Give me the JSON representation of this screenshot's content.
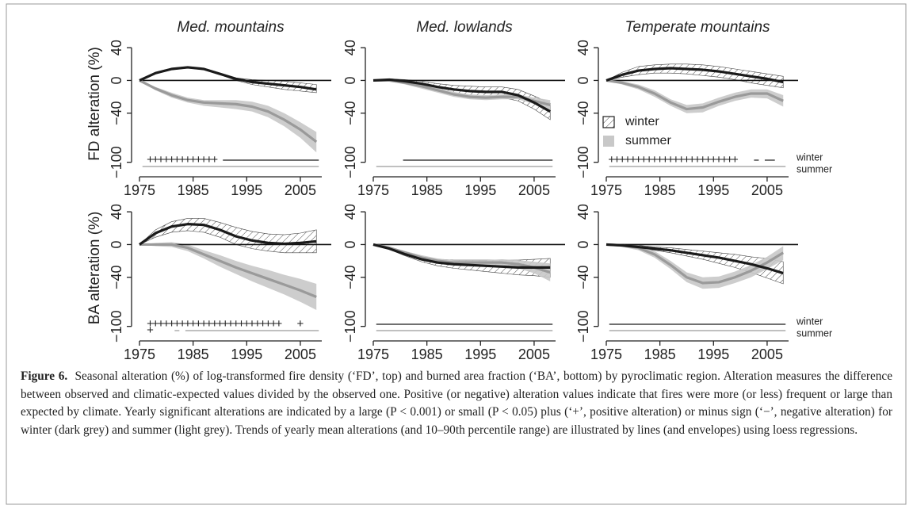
{
  "chart_data": [
    {
      "type": "line",
      "title": "Med. mountains",
      "ylabel": "FD alteration (%)",
      "x": [
        1975,
        1978,
        1981,
        1984,
        1987,
        1990,
        1993,
        1996,
        1999,
        2002,
        2005,
        2008
      ],
      "xlim": [
        1975,
        2009
      ],
      "xticks": [
        1975,
        1985,
        1995,
        2005
      ],
      "ylim": [
        -110,
        45
      ],
      "yticks": [
        40,
        0,
        {
          "value": -40,
          "label": "−40"
        },
        {
          "value": -100,
          "label": "−100"
        }
      ],
      "hline": 0,
      "series": [
        {
          "name": "winter",
          "color": "#1a1a1a",
          "envelope": "hatch",
          "values": [
            0,
            9,
            14,
            16,
            14,
            8,
            2,
            -2,
            -4,
            -6,
            -8,
            -11
          ],
          "lower": [
            0,
            8,
            13,
            15,
            13,
            7,
            0,
            -5,
            -8,
            -11,
            -13,
            -15
          ],
          "upper": [
            0,
            10,
            15,
            17,
            15,
            9,
            3,
            1,
            0,
            -1,
            -3,
            -5
          ]
        },
        {
          "name": "summer",
          "color": "#9a9a9a",
          "envelope": "#c8c8c8",
          "values": [
            0,
            -10,
            -18,
            -24,
            -27,
            -28,
            -29,
            -32,
            -38,
            -48,
            -60,
            -75
          ],
          "lower": [
            0,
            -12,
            -21,
            -27,
            -31,
            -33,
            -35,
            -38,
            -45,
            -56,
            -70,
            -88
          ],
          "upper": [
            0,
            -8,
            -15,
            -21,
            -24,
            -24,
            -24,
            -26,
            -31,
            -40,
            -51,
            -63
          ]
        }
      ],
      "significance": [
        [
          {
            "sign": "+",
            "from": 1977,
            "to": 1989
          },
          {
            "sign": "−",
            "from": 1991,
            "to": 2008
          }
        ],
        [
          {
            "sign": "−",
            "from": 1976,
            "to": 2008
          }
        ]
      ]
    },
    {
      "type": "line",
      "title": "Med. lowlands",
      "x": [
        1975,
        1978,
        1981,
        1984,
        1987,
        1990,
        1993,
        1996,
        1999,
        2002,
        2005,
        2008
      ],
      "xlim": [
        1975,
        2009
      ],
      "xticks": [
        1975,
        1985,
        1995,
        2005
      ],
      "ylim": [
        -110,
        45
      ],
      "yticks": [
        40,
        0,
        {
          "value": -40,
          "label": "−40"
        },
        {
          "value": -100,
          "label": "−100"
        }
      ],
      "hline": 0,
      "series": [
        {
          "name": "winter",
          "color": "#1a1a1a",
          "envelope": "hatch",
          "values": [
            0,
            1,
            -1,
            -4,
            -8,
            -11,
            -13,
            -14,
            -14,
            -18,
            -27,
            -38
          ],
          "lower": [
            0,
            0,
            -3,
            -7,
            -12,
            -16,
            -19,
            -20,
            -21,
            -25,
            -35,
            -48
          ],
          "upper": [
            0,
            2,
            1,
            -1,
            -4,
            -6,
            -7,
            -8,
            -8,
            -11,
            -19,
            -28
          ]
        },
        {
          "name": "summer",
          "color": "#9a9a9a",
          "envelope": "#c8c8c8",
          "values": [
            0,
            0,
            -3,
            -7,
            -12,
            -17,
            -20,
            -21,
            -20,
            -20,
            -25,
            -30
          ],
          "lower": [
            0,
            -1,
            -5,
            -10,
            -15,
            -20,
            -23,
            -24,
            -23,
            -23,
            -29,
            -36
          ],
          "upper": [
            0,
            1,
            -1,
            -4,
            -9,
            -14,
            -17,
            -18,
            -17,
            -17,
            -21,
            -24
          ]
        }
      ],
      "significance": [
        [
          {
            "sign": "−",
            "from": 1981,
            "to": 2008
          }
        ],
        [
          {
            "sign": "−",
            "from": 1976,
            "to": 2008
          }
        ]
      ]
    },
    {
      "type": "line",
      "title": "Temperate mountains",
      "legend": "center-left",
      "row_labels": [
        "winter",
        "summer"
      ],
      "x": [
        1975,
        1978,
        1981,
        1984,
        1987,
        1990,
        1993,
        1996,
        1999,
        2002,
        2005,
        2008
      ],
      "xlim": [
        1975,
        2009
      ],
      "xticks": [
        1975,
        1985,
        1995,
        2005
      ],
      "ylim": [
        -110,
        45
      ],
      "yticks": [
        40,
        0,
        {
          "value": -40,
          "label": "−40"
        },
        {
          "value": -100,
          "label": "−100"
        }
      ],
      "hline": 0,
      "series": [
        {
          "name": "winter",
          "color": "#1a1a1a",
          "envelope": "hatch",
          "values": [
            0,
            7,
            12,
            14,
            15,
            14,
            13,
            11,
            8,
            5,
            2,
            -2
          ],
          "lower": [
            0,
            4,
            7,
            9,
            9,
            8,
            6,
            4,
            1,
            -3,
            -6,
            -9
          ],
          "upper": [
            0,
            10,
            17,
            19,
            20,
            20,
            19,
            17,
            14,
            11,
            8,
            5
          ]
        },
        {
          "name": "summer",
          "color": "#9a9a9a",
          "envelope": "#c8c8c8",
          "values": [
            0,
            -3,
            -8,
            -16,
            -27,
            -35,
            -33,
            -26,
            -20,
            -16,
            -16,
            -25
          ],
          "lower": [
            0,
            -5,
            -11,
            -20,
            -31,
            -40,
            -39,
            -31,
            -25,
            -21,
            -22,
            -32
          ],
          "upper": [
            0,
            -1,
            -5,
            -12,
            -23,
            -30,
            -28,
            -21,
            -15,
            -11,
            -11,
            -18
          ]
        }
      ],
      "significance": [
        [
          {
            "sign": "+",
            "from": 1976,
            "to": 1999
          },
          {
            "sign": "−",
            "from": 2003,
            "to": 2003
          },
          {
            "sign": "−",
            "from": 2005,
            "to": 2006
          }
        ],
        [
          {
            "sign": "−",
            "from": 1976,
            "to": 2008
          }
        ]
      ]
    },
    {
      "type": "line",
      "ylabel": "BA alteration (%)",
      "x": [
        1975,
        1978,
        1981,
        1984,
        1987,
        1990,
        1993,
        1996,
        1999,
        2002,
        2005,
        2008
      ],
      "xlim": [
        1975,
        2009
      ],
      "xticks": [
        1975,
        1985,
        1995,
        2005
      ],
      "ylim": [
        -110,
        45
      ],
      "yticks": [
        40,
        0,
        {
          "value": -40,
          "label": "−40"
        },
        {
          "value": -100,
          "label": "−100"
        }
      ],
      "hline": 0,
      "series": [
        {
          "name": "winter",
          "color": "#1a1a1a",
          "envelope": "hatch",
          "values": [
            0,
            14,
            22,
            25,
            24,
            18,
            10,
            5,
            2,
            1,
            2,
            4
          ],
          "lower": [
            0,
            9,
            15,
            17,
            15,
            9,
            0,
            -5,
            -8,
            -10,
            -10,
            -10
          ],
          "upper": [
            0,
            18,
            28,
            32,
            32,
            27,
            21,
            16,
            13,
            12,
            14,
            18
          ]
        },
        {
          "name": "summer",
          "color": "#9a9a9a",
          "envelope": "#c8c8c8",
          "values": [
            0,
            0,
            0,
            -4,
            -12,
            -20,
            -28,
            -35,
            -42,
            -49,
            -56,
            -64
          ],
          "lower": [
            0,
            -2,
            -3,
            -8,
            -17,
            -27,
            -36,
            -45,
            -53,
            -61,
            -70,
            -80
          ],
          "upper": [
            0,
            2,
            3,
            0,
            -7,
            -13,
            -20,
            -26,
            -31,
            -37,
            -42,
            -48
          ]
        }
      ],
      "significance": [
        [
          {
            "sign": "+",
            "from": 1977,
            "to": 2001
          },
          {
            "sign": "+",
            "from": 2005,
            "to": 2005
          }
        ],
        [
          {
            "sign": "+",
            "from": 1977,
            "to": 1977
          },
          {
            "sign": "−",
            "from": 1982,
            "to": 1982
          },
          {
            "sign": "−",
            "from": 1984,
            "to": 2008
          }
        ]
      ]
    },
    {
      "type": "line",
      "x": [
        1975,
        1978,
        1981,
        1984,
        1987,
        1990,
        1993,
        1996,
        1999,
        2002,
        2005,
        2008
      ],
      "xlim": [
        1975,
        2009
      ],
      "xticks": [
        1975,
        1985,
        1995,
        2005
      ],
      "ylim": [
        -110,
        45
      ],
      "yticks": [
        40,
        0,
        {
          "value": -40,
          "label": "−40"
        },
        {
          "value": -100,
          "label": "−100"
        }
      ],
      "hline": 0,
      "series": [
        {
          "name": "winter",
          "color": "#1a1a1a",
          "envelope": "hatch",
          "values": [
            0,
            -5,
            -12,
            -18,
            -22,
            -24,
            -25,
            -26,
            -27,
            -28,
            -28,
            -28
          ],
          "lower": [
            0,
            -6,
            -14,
            -21,
            -26,
            -29,
            -31,
            -33,
            -35,
            -37,
            -38,
            -40
          ],
          "upper": [
            0,
            -4,
            -10,
            -15,
            -18,
            -19,
            -19,
            -19,
            -19,
            -19,
            -18,
            -17
          ]
        },
        {
          "name": "summer",
          "color": "#9a9a9a",
          "envelope": "#c8c8c8",
          "values": [
            0,
            -4,
            -10,
            -16,
            -20,
            -22,
            -22,
            -22,
            -22,
            -24,
            -28,
            -34
          ],
          "lower": [
            0,
            -5,
            -12,
            -18,
            -22,
            -25,
            -25,
            -25,
            -26,
            -29,
            -35,
            -45
          ],
          "upper": [
            0,
            -3,
            -8,
            -13,
            -17,
            -19,
            -19,
            -19,
            -18,
            -19,
            -21,
            -23
          ]
        }
      ],
      "significance": [
        [
          {
            "sign": "−",
            "from": 1976,
            "to": 2008
          }
        ],
        [
          {
            "sign": "−",
            "from": 1976,
            "to": 2008
          }
        ]
      ]
    },
    {
      "type": "line",
      "row_labels": [
        "winter",
        "summer"
      ],
      "x": [
        1975,
        1978,
        1981,
        1984,
        1987,
        1990,
        1993,
        1996,
        1999,
        2002,
        2005,
        2008
      ],
      "xlim": [
        1975,
        2009
      ],
      "xticks": [
        1975,
        1985,
        1995,
        2005
      ],
      "ylim": [
        -110,
        45
      ],
      "yticks": [
        40,
        0,
        {
          "value": -40,
          "label": "−40"
        },
        {
          "value": -100,
          "label": "−100"
        }
      ],
      "hline": 0,
      "series": [
        {
          "name": "winter",
          "color": "#1a1a1a",
          "envelope": "hatch",
          "values": [
            0,
            -1,
            -3,
            -5,
            -7,
            -10,
            -13,
            -16,
            -20,
            -24,
            -29,
            -35
          ],
          "lower": [
            0,
            -2,
            -4,
            -7,
            -10,
            -14,
            -18,
            -23,
            -28,
            -34,
            -41,
            -48
          ],
          "upper": [
            0,
            0,
            -1,
            -3,
            -4,
            -6,
            -8,
            -10,
            -12,
            -15,
            -17,
            -21
          ]
        },
        {
          "name": "summer",
          "color": "#9a9a9a",
          "envelope": "#c8c8c8",
          "values": [
            0,
            -1,
            -4,
            -12,
            -25,
            -40,
            -47,
            -46,
            -40,
            -32,
            -22,
            -10
          ],
          "lower": [
            0,
            -3,
            -7,
            -16,
            -30,
            -46,
            -54,
            -53,
            -47,
            -40,
            -30,
            -19
          ],
          "upper": [
            0,
            1,
            -1,
            -8,
            -20,
            -34,
            -40,
            -39,
            -33,
            -25,
            -15,
            -2
          ]
        }
      ],
      "significance": [
        [
          {
            "sign": "−",
            "from": 1976,
            "to": 2008
          }
        ],
        [
          {
            "sign": "−",
            "from": 1976,
            "to": 2008
          }
        ]
      ]
    }
  ],
  "caption": {
    "label": "Figure 6.",
    "text": "Seasonal alteration (%) of log-transformed fire density (‘FD’, top) and burned area fraction (‘BA’, bottom) by pyroclimatic region. Alteration measures the difference between observed and climatic-expected values divided by the observed one. Positive (or negative) alteration values indicate that fires were more (or less) frequent or large than expected by climate. Yearly significant alterations are indicated by a large (P < 0.001) or small (P < 0.05) plus (‘+’, positive alteration) or minus sign (‘−’, negative alteration) for winter (dark grey) and summer (light grey). Trends of yearly mean alterations (and 10–90th percentile range) are illustrated by lines (and envelopes) using loess regressions."
  }
}
